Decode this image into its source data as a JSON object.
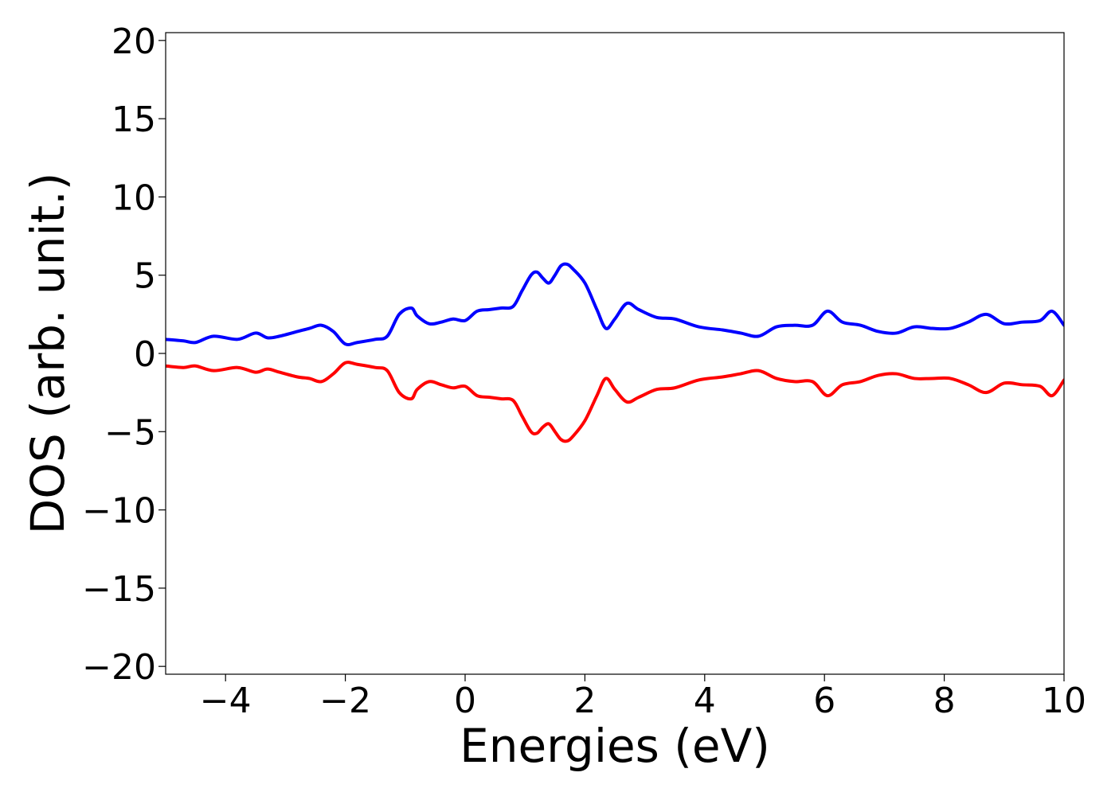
{
  "chart_data": {
    "type": "line",
    "title": "",
    "xlabel": "Energies (eV)",
    "ylabel": "DOS (arb. unit.)",
    "xlim": [
      -5,
      10
    ],
    "ylim": [
      -20.5,
      20.5
    ],
    "xticks": [
      -4,
      -2,
      0,
      2,
      4,
      6,
      8,
      10
    ],
    "xtick_labels": [
      "−4",
      "−2",
      "0",
      "2",
      "4",
      "6",
      "8",
      "10"
    ],
    "yticks": [
      -20,
      -15,
      -10,
      -5,
      0,
      5,
      10,
      15,
      20
    ],
    "ytick_labels": [
      "−20",
      "−15",
      "−10",
      "−5",
      "0",
      "5",
      "10",
      "15",
      "20"
    ],
    "grid": false,
    "legend": "none",
    "series": [
      {
        "color": "#0000ff",
        "x": [
          -5.0,
          -4.7,
          -4.5,
          -4.2,
          -3.8,
          -3.5,
          -3.3,
          -3.1,
          -2.8,
          -2.6,
          -2.4,
          -2.2,
          -2.0,
          -1.8,
          -1.5,
          -1.3,
          -1.1,
          -0.9,
          -0.8,
          -0.6,
          -0.4,
          -0.2,
          0.0,
          0.2,
          0.4,
          0.6,
          0.8,
          0.95,
          1.1,
          1.2,
          1.3,
          1.4,
          1.5,
          1.6,
          1.7,
          1.8,
          2.0,
          2.2,
          2.35,
          2.5,
          2.7,
          2.9,
          3.2,
          3.5,
          3.9,
          4.3,
          4.6,
          4.9,
          5.2,
          5.5,
          5.8,
          6.05,
          6.3,
          6.6,
          6.9,
          7.2,
          7.5,
          7.8,
          8.1,
          8.4,
          8.7,
          9.0,
          9.3,
          9.6,
          9.8,
          10.0
        ],
        "y": [
          0.9,
          0.8,
          0.7,
          1.1,
          0.9,
          1.3,
          1.0,
          1.1,
          1.4,
          1.6,
          1.8,
          1.4,
          0.6,
          0.7,
          0.9,
          1.1,
          2.5,
          2.9,
          2.4,
          1.9,
          2.0,
          2.2,
          2.1,
          2.7,
          2.8,
          2.9,
          3.0,
          4.0,
          5.0,
          5.2,
          4.8,
          4.5,
          5.0,
          5.6,
          5.7,
          5.4,
          4.5,
          2.8,
          1.6,
          2.2,
          3.2,
          2.8,
          2.3,
          2.2,
          1.7,
          1.5,
          1.3,
          1.1,
          1.7,
          1.8,
          1.8,
          2.7,
          2.0,
          1.8,
          1.4,
          1.3,
          1.7,
          1.6,
          1.6,
          2.0,
          2.5,
          1.9,
          2.0,
          2.1,
          2.7,
          1.8
        ]
      },
      {
        "color": "#ff0000",
        "x": [
          -5.0,
          -4.7,
          -4.5,
          -4.2,
          -3.8,
          -3.5,
          -3.3,
          -3.1,
          -2.8,
          -2.6,
          -2.4,
          -2.2,
          -2.0,
          -1.8,
          -1.5,
          -1.3,
          -1.1,
          -0.9,
          -0.8,
          -0.6,
          -0.4,
          -0.2,
          0.0,
          0.2,
          0.4,
          0.6,
          0.8,
          0.95,
          1.1,
          1.2,
          1.3,
          1.4,
          1.5,
          1.6,
          1.7,
          1.8,
          2.0,
          2.2,
          2.35,
          2.5,
          2.7,
          2.9,
          3.2,
          3.5,
          3.9,
          4.3,
          4.6,
          4.9,
          5.2,
          5.5,
          5.8,
          6.05,
          6.3,
          6.6,
          6.9,
          7.2,
          7.5,
          7.8,
          8.1,
          8.4,
          8.7,
          9.0,
          9.3,
          9.6,
          9.8,
          10.0
        ],
        "y": [
          -0.8,
          -0.9,
          -0.8,
          -1.1,
          -0.9,
          -1.2,
          -1.0,
          -1.2,
          -1.5,
          -1.6,
          -1.8,
          -1.3,
          -0.6,
          -0.7,
          -0.9,
          -1.1,
          -2.5,
          -2.9,
          -2.3,
          -1.8,
          -2.0,
          -2.2,
          -2.1,
          -2.7,
          -2.8,
          -2.9,
          -3.0,
          -4.0,
          -5.0,
          -5.1,
          -4.7,
          -4.5,
          -5.0,
          -5.5,
          -5.6,
          -5.3,
          -4.3,
          -2.7,
          -1.6,
          -2.3,
          -3.1,
          -2.8,
          -2.3,
          -2.2,
          -1.7,
          -1.5,
          -1.3,
          -1.1,
          -1.6,
          -1.8,
          -1.8,
          -2.7,
          -2.0,
          -1.8,
          -1.4,
          -1.3,
          -1.6,
          -1.6,
          -1.6,
          -2.0,
          -2.5,
          -1.9,
          -2.0,
          -2.1,
          -2.7,
          -1.7
        ]
      }
    ]
  }
}
